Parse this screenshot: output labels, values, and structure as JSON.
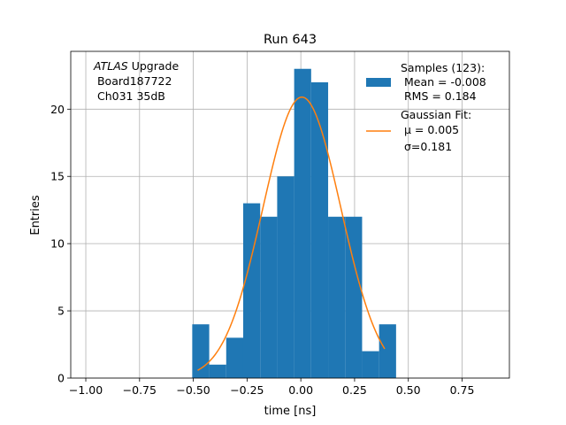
{
  "chart_data": {
    "type": "bar",
    "title": "Run 643",
    "xlabel": "time [ns]",
    "ylabel": "Entries",
    "xlim": [
      -1.07,
      0.97
    ],
    "ylim": [
      0,
      24.3
    ],
    "grid": true,
    "xticks": [
      -1.0,
      -0.75,
      -0.5,
      -0.25,
      0.0,
      0.25,
      0.5,
      0.75
    ],
    "xtick_labels": [
      "−1.00",
      "−0.75",
      "−0.50",
      "−0.25",
      "0.00",
      "0.25",
      "0.50",
      "0.75"
    ],
    "yticks": [
      0,
      5,
      10,
      15,
      20
    ],
    "ytick_labels": [
      "0",
      "5",
      "10",
      "15",
      "20"
    ],
    "histogram": {
      "color": "#1f77b4",
      "bin_edges": [
        -0.505,
        -0.426,
        -0.347,
        -0.268,
        -0.189,
        -0.11,
        -0.031,
        0.048,
        0.127,
        0.206,
        0.285,
        0.364,
        0.443
      ],
      "counts": [
        4,
        1,
        3,
        13,
        12,
        15,
        23,
        22,
        12,
        12,
        2,
        4
      ]
    },
    "gaussian_fit": {
      "color": "#ff7f0e",
      "amplitude": 20.9,
      "mu": 0.005,
      "sigma": 0.181,
      "x_range": [
        -0.48,
        0.39
      ]
    },
    "legend": {
      "placement": "top-right",
      "entries": [
        {
          "lines": [
            "Samples (123):",
            " Mean = -0.008",
            " RMS = 0.184"
          ],
          "color": "#1f77b4",
          "marker": "patch"
        },
        {
          "lines": [
            "Gaussian Fit:",
            " μ = 0.005",
            " σ=0.181"
          ],
          "color": "#ff7f0e",
          "marker": "line"
        }
      ]
    },
    "annotation": {
      "italic": "ATLAS",
      "rest": " Upgrade",
      "line2": " Board187722",
      "line3": " Ch031 35dB"
    }
  }
}
